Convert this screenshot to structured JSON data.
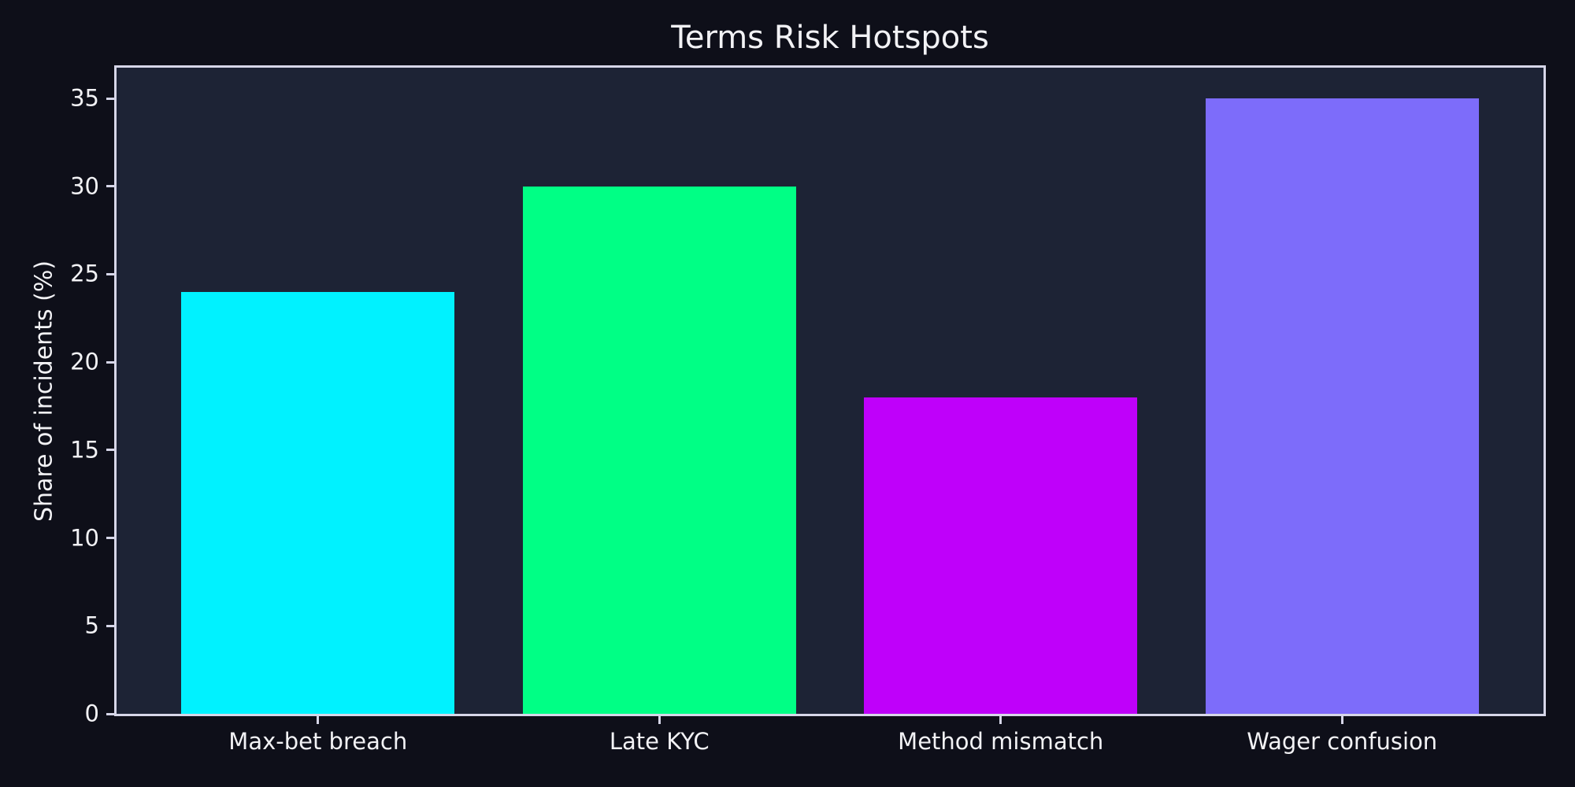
{
  "chart_data": {
    "type": "bar",
    "title": "Terms Risk Hotspots",
    "xlabel": "",
    "ylabel": "Share of incidents (%)",
    "categories": [
      "Max-bet breach",
      "Late KYC",
      "Method mismatch",
      "Wager confusion"
    ],
    "values": [
      24,
      30,
      18,
      35
    ],
    "bar_colors": [
      "#00f2ff",
      "#00ff85",
      "#bf00fa",
      "#7d6cfa"
    ],
    "yticks": [
      0,
      5,
      10,
      15,
      20,
      25,
      30,
      35
    ],
    "ylim": [
      0,
      36.75
    ],
    "grid": false,
    "legend_position": "none",
    "colors": {
      "figure_bg": "#0e0f19",
      "axes_bg": "#1d2335",
      "spine": "#d6d6e8",
      "text": "#f2f2f5"
    }
  }
}
